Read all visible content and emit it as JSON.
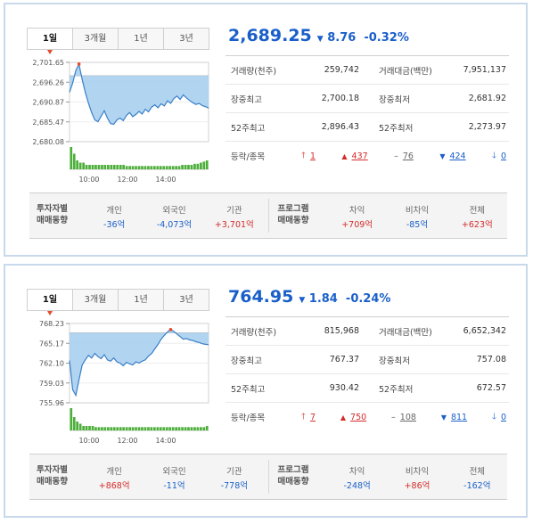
{
  "panels": [
    {
      "tabs": [
        "1일",
        "3개월",
        "1년",
        "3년"
      ],
      "index": {
        "value": "2,689.25",
        "arrow": "▼",
        "change": "8.76",
        "percent": "-0.32%"
      },
      "stats": {
        "volume_label": "거래량(천주)",
        "volume": "259,742",
        "amount_label": "거래대금(백만)",
        "amount": "7,951,137",
        "high_label": "장중최고",
        "high": "2,700.18",
        "low_label": "장중최저",
        "low": "2,681.92",
        "w52_high_label": "52주최고",
        "w52_high": "2,896.43",
        "w52_low_label": "52주최저",
        "w52_low": "2,273.97",
        "updown_label": "등락/종목",
        "limit_up": "1",
        "up": "437",
        "flat": "76",
        "down": "424",
        "limit_down": "0"
      },
      "investors": {
        "label_line1": "투자자별",
        "label_line2": "매매동향",
        "individual_label": "개인",
        "individual": "-36억",
        "foreign_label": "외국인",
        "foreign": "-4,073억",
        "institution_label": "기관",
        "institution": "+3,701억",
        "program_line1": "프로그램",
        "program_line2": "매매동향",
        "arbitrage_label": "차익",
        "arbitrage": "+709억",
        "non_arbitrage_label": "비차익",
        "non_arbitrage": "-85억",
        "total_label": "전체",
        "total": "+623억"
      },
      "chart_data": {
        "type": "area",
        "y_ticks": [
          "2,701.65",
          "2,696.26",
          "2,690.87",
          "2,685.47",
          "2,680.08"
        ],
        "x_ticks": [
          "10:00",
          "12:00",
          "14:00"
        ],
        "ylim": [
          2680.08,
          2701.65
        ],
        "prev_close": 2698.01,
        "prices": [
          2693.5,
          2696.0,
          2699.5,
          2701.2,
          2697.0,
          2693.5,
          2690.5,
          2688.0,
          2686.0,
          2685.5,
          2687.0,
          2688.5,
          2686.5,
          2685.0,
          2684.8,
          2686.0,
          2686.5,
          2685.8,
          2687.2,
          2688.0,
          2686.9,
          2687.5,
          2688.3,
          2687.6,
          2688.9,
          2688.2,
          2689.5,
          2690.1,
          2689.3,
          2690.4,
          2689.8,
          2691.2,
          2690.5,
          2691.8,
          2692.5,
          2691.6,
          2692.8,
          2692.0,
          2691.3,
          2690.7,
          2690.2,
          2690.5,
          2689.9,
          2689.6,
          2689.25
        ],
        "volume": [
          10,
          7,
          4,
          3,
          3,
          2,
          2,
          2,
          2,
          2,
          2,
          2,
          2,
          2,
          2,
          2,
          2,
          2,
          1.5,
          1.5,
          1.5,
          1.5,
          1.5,
          1.5,
          1.5,
          1.5,
          1.5,
          1.5,
          1.5,
          1.5,
          1.5,
          1.5,
          1.5,
          1.5,
          1.5,
          1.5,
          2,
          2,
          2,
          2,
          2.5,
          2.5,
          3,
          3.5,
          4
        ]
      }
    },
    {
      "tabs": [
        "1일",
        "3개월",
        "1년",
        "3년"
      ],
      "index": {
        "value": "764.95",
        "arrow": "▼",
        "change": "1.84",
        "percent": "-0.24%"
      },
      "stats": {
        "volume_label": "거래량(천주)",
        "volume": "815,968",
        "amount_label": "거래대금(백만)",
        "amount": "6,652,342",
        "high_label": "장중최고",
        "high": "767.37",
        "low_label": "장중최저",
        "low": "757.08",
        "w52_high_label": "52주최고",
        "w52_high": "930.42",
        "w52_low_label": "52주최저",
        "w52_low": "672.57",
        "updown_label": "등락/종목",
        "limit_up": "7",
        "up": "750",
        "flat": "108",
        "down": "811",
        "limit_down": "0"
      },
      "investors": {
        "label_line1": "투자자별",
        "label_line2": "매매동향",
        "individual_label": "개인",
        "individual": "+868억",
        "foreign_label": "외국인",
        "foreign": "-11억",
        "institution_label": "기관",
        "institution": "-778억",
        "program_line1": "프로그램",
        "program_line2": "매매동향",
        "arbitrage_label": "차익",
        "arbitrage": "-248억",
        "non_arbitrage_label": "비차익",
        "non_arbitrage": "+86억",
        "total_label": "전체",
        "total": "-162억"
      },
      "chart_data": {
        "type": "area",
        "y_ticks": [
          "768.23",
          "765.17",
          "762.10",
          "759.03",
          "755.96"
        ],
        "x_ticks": [
          "10:00",
          "12:00",
          "14:00"
        ],
        "ylim": [
          755.96,
          768.23
        ],
        "prev_close": 766.79,
        "prices": [
          762.5,
          758.0,
          757.1,
          759.5,
          761.8,
          762.6,
          763.3,
          762.9,
          763.6,
          763.1,
          762.8,
          763.4,
          762.6,
          762.4,
          762.9,
          762.3,
          762.1,
          761.7,
          762.2,
          762.0,
          761.8,
          762.3,
          762.1,
          762.4,
          762.6,
          763.2,
          763.6,
          764.3,
          765.0,
          765.8,
          766.4,
          766.9,
          767.3,
          767.0,
          766.6,
          766.2,
          765.8,
          765.9,
          765.7,
          765.6,
          765.4,
          765.3,
          765.1,
          765.0,
          764.95
        ],
        "volume": [
          10,
          6,
          4,
          3,
          2,
          2,
          2,
          2,
          1.5,
          1.5,
          1.5,
          1.5,
          1.5,
          1.5,
          1.5,
          1.5,
          1.5,
          1.5,
          1.5,
          1.5,
          1.5,
          1.5,
          1.5,
          1.5,
          1.5,
          1.5,
          1.5,
          1.5,
          1.5,
          1.5,
          1.5,
          1.5,
          1.5,
          1.5,
          1.5,
          1.5,
          1.5,
          1.5,
          1.5,
          1.5,
          1.5,
          1.5,
          1.5,
          1.5,
          2
        ]
      }
    }
  ]
}
